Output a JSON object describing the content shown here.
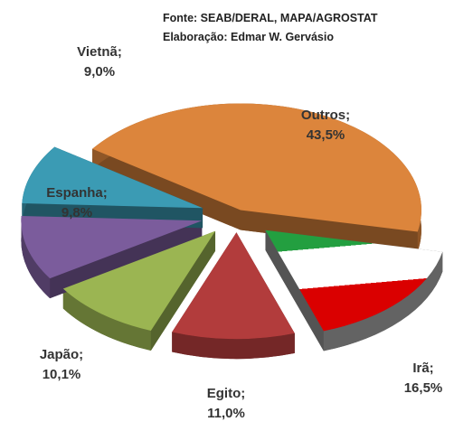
{
  "chart_data": {
    "type": "pie",
    "notes": [
      "Fonte: SEAB/DERAL, MAPA/AGROSTAT",
      "Elaboração: Edmar W. Gervásio"
    ],
    "categories": [
      "Outros;",
      "Irã;",
      "Egito;",
      "Japão;",
      "Espanha;",
      "Vietnã;"
    ],
    "values": [
      43.5,
      16.5,
      11.0,
      10.1,
      9.8,
      9.0
    ],
    "value_labels": [
      "43,5%",
      "16,5%",
      "11,0%",
      "10,1%",
      "9,8%",
      "9,0%"
    ],
    "colors": [
      "#dc853c",
      "#ffffff",
      "#b23c3c",
      "#9bb552",
      "#7b5c9c",
      "#3b9bb4"
    ]
  }
}
